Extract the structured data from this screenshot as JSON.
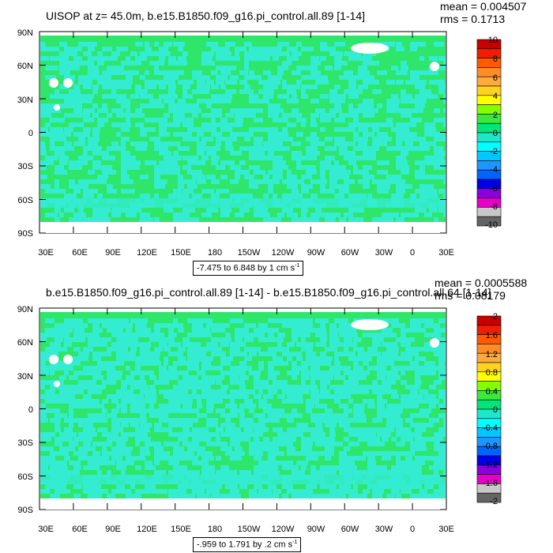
{
  "panels": [
    {
      "title": "UISOP at z=  45.0m, b.e15.B1850.f09_g16.pi_control.all.89 [1-14]",
      "mean_text": "mean = 0.004507",
      "rms_text": "rms = 0.1713",
      "unit_text": "-7.475 to 6.848 by 1 cm s",
      "unit_sup": "-1",
      "lat_labels": [
        "90N",
        "60N",
        "30N",
        "0",
        "30S",
        "60S",
        "90S"
      ],
      "lon_labels": [
        "30E",
        "60E",
        "90E",
        "120E",
        "150E",
        "180",
        "150W",
        "120W",
        "90W",
        "60W",
        "30W",
        "0",
        "30E"
      ],
      "colorbar_labels": [
        "10",
        "8",
        "6",
        "4",
        "2",
        "0",
        "-2",
        "-4",
        "-6",
        "-8",
        "-10"
      ],
      "colorbar_colors": [
        "#c80000",
        "#f01e00",
        "#ff5a00",
        "#ff8c28",
        "#ffaa3c",
        "#ffd21e",
        "#ffff00",
        "#82ff00",
        "#3ce83c",
        "#00e678",
        "#1ee6c8",
        "#00ffff",
        "#00c8ff",
        "#1e96ff",
        "#0064ff",
        "#0000e6",
        "#8c00dc",
        "#e600c8",
        "#c8c8c8",
        "#646464"
      ],
      "colors": {
        "dominant": "#2ee66a",
        "secondary": "#33ecd2"
      }
    },
    {
      "title": "b.e15.B1850.f09_g16.pi_control.all.89 [1-14] - b.e15.B1850.f09_g16.pi_control.all.64 [1-14]",
      "mean_text": "mean = 0.0005588",
      "rms_text": "rms = 0.08179",
      "unit_text": "-.959 to 1.791 by .2 cm s",
      "unit_sup": "-1",
      "lat_labels": [
        "90N",
        "60N",
        "30N",
        "0",
        "30S",
        "60S",
        "90S"
      ],
      "lon_labels": [
        "30E",
        "60E",
        "90E",
        "120E",
        "150E",
        "180",
        "150W",
        "120W",
        "90W",
        "60W",
        "30W",
        "0",
        "30E"
      ],
      "colorbar_labels": [
        "2",
        "1.6",
        "1.2",
        "0.8",
        "0.4",
        "0",
        "-0.4",
        "-0.8",
        "-1.2",
        "-1.6",
        "-2"
      ],
      "colorbar_colors": [
        "#c80000",
        "#f01e00",
        "#ff5a00",
        "#ff8c28",
        "#ffaa3c",
        "#ffd21e",
        "#ffff00",
        "#82ff00",
        "#3ce83c",
        "#00e678",
        "#1ee6c8",
        "#00ffff",
        "#00c8ff",
        "#1e96ff",
        "#0064ff",
        "#0000e6",
        "#8c00dc",
        "#e600c8",
        "#c8c8c8",
        "#646464"
      ],
      "colors": {
        "dominant": "#2ee66a",
        "secondary": "#33ecd2"
      }
    }
  ]
}
